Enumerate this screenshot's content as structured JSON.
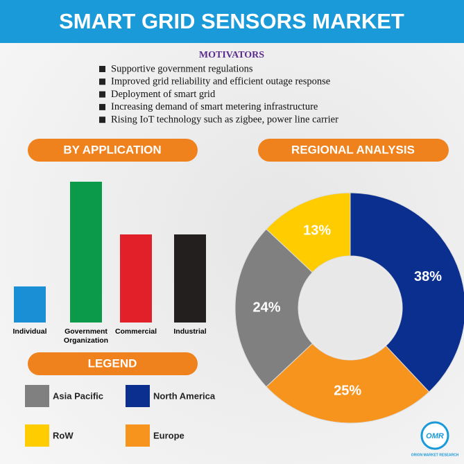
{
  "title": "SMART GRID SENSORS MARKET",
  "motivators": {
    "heading": "MOTIVATORS",
    "items": [
      "Supportive government regulations",
      "Improved grid reliability and efficient outage response",
      "Deployment of smart grid",
      "Increasing demand of smart metering infrastructure",
      "Rising IoT technology such as zigbee, power line carrier"
    ]
  },
  "chart_data": [
    {
      "type": "bar",
      "title": "BY APPLICATION",
      "categories": [
        "Individual",
        "Government Organization",
        "Commercial",
        "Industrial"
      ],
      "values": [
        52,
        203,
        127,
        127
      ],
      "colors": [
        "#1a8fd6",
        "#0a9a4a",
        "#e2202a",
        "#231f1e"
      ]
    },
    {
      "type": "pie",
      "title": "REGIONAL ANALYSIS",
      "values": [
        38,
        25,
        24,
        13
      ],
      "value_labels": [
        "38%",
        "25%",
        "24%",
        "13%"
      ],
      "colors": [
        "#0b2f8f",
        "#f7941d",
        "#808080",
        "#ffcc00"
      ]
    }
  ],
  "legend": {
    "title": "LEGEND",
    "items": [
      {
        "name": "Asia Pacific",
        "color": "#808080"
      },
      {
        "name": "North America",
        "color": "#0b2f8f"
      },
      {
        "name": "RoW",
        "color": "#ffcc00"
      },
      {
        "name": "Europe",
        "color": "#f7941d"
      }
    ]
  },
  "logo": {
    "mark": "OMR",
    "name": "ORION MARKET RESEARCH"
  }
}
